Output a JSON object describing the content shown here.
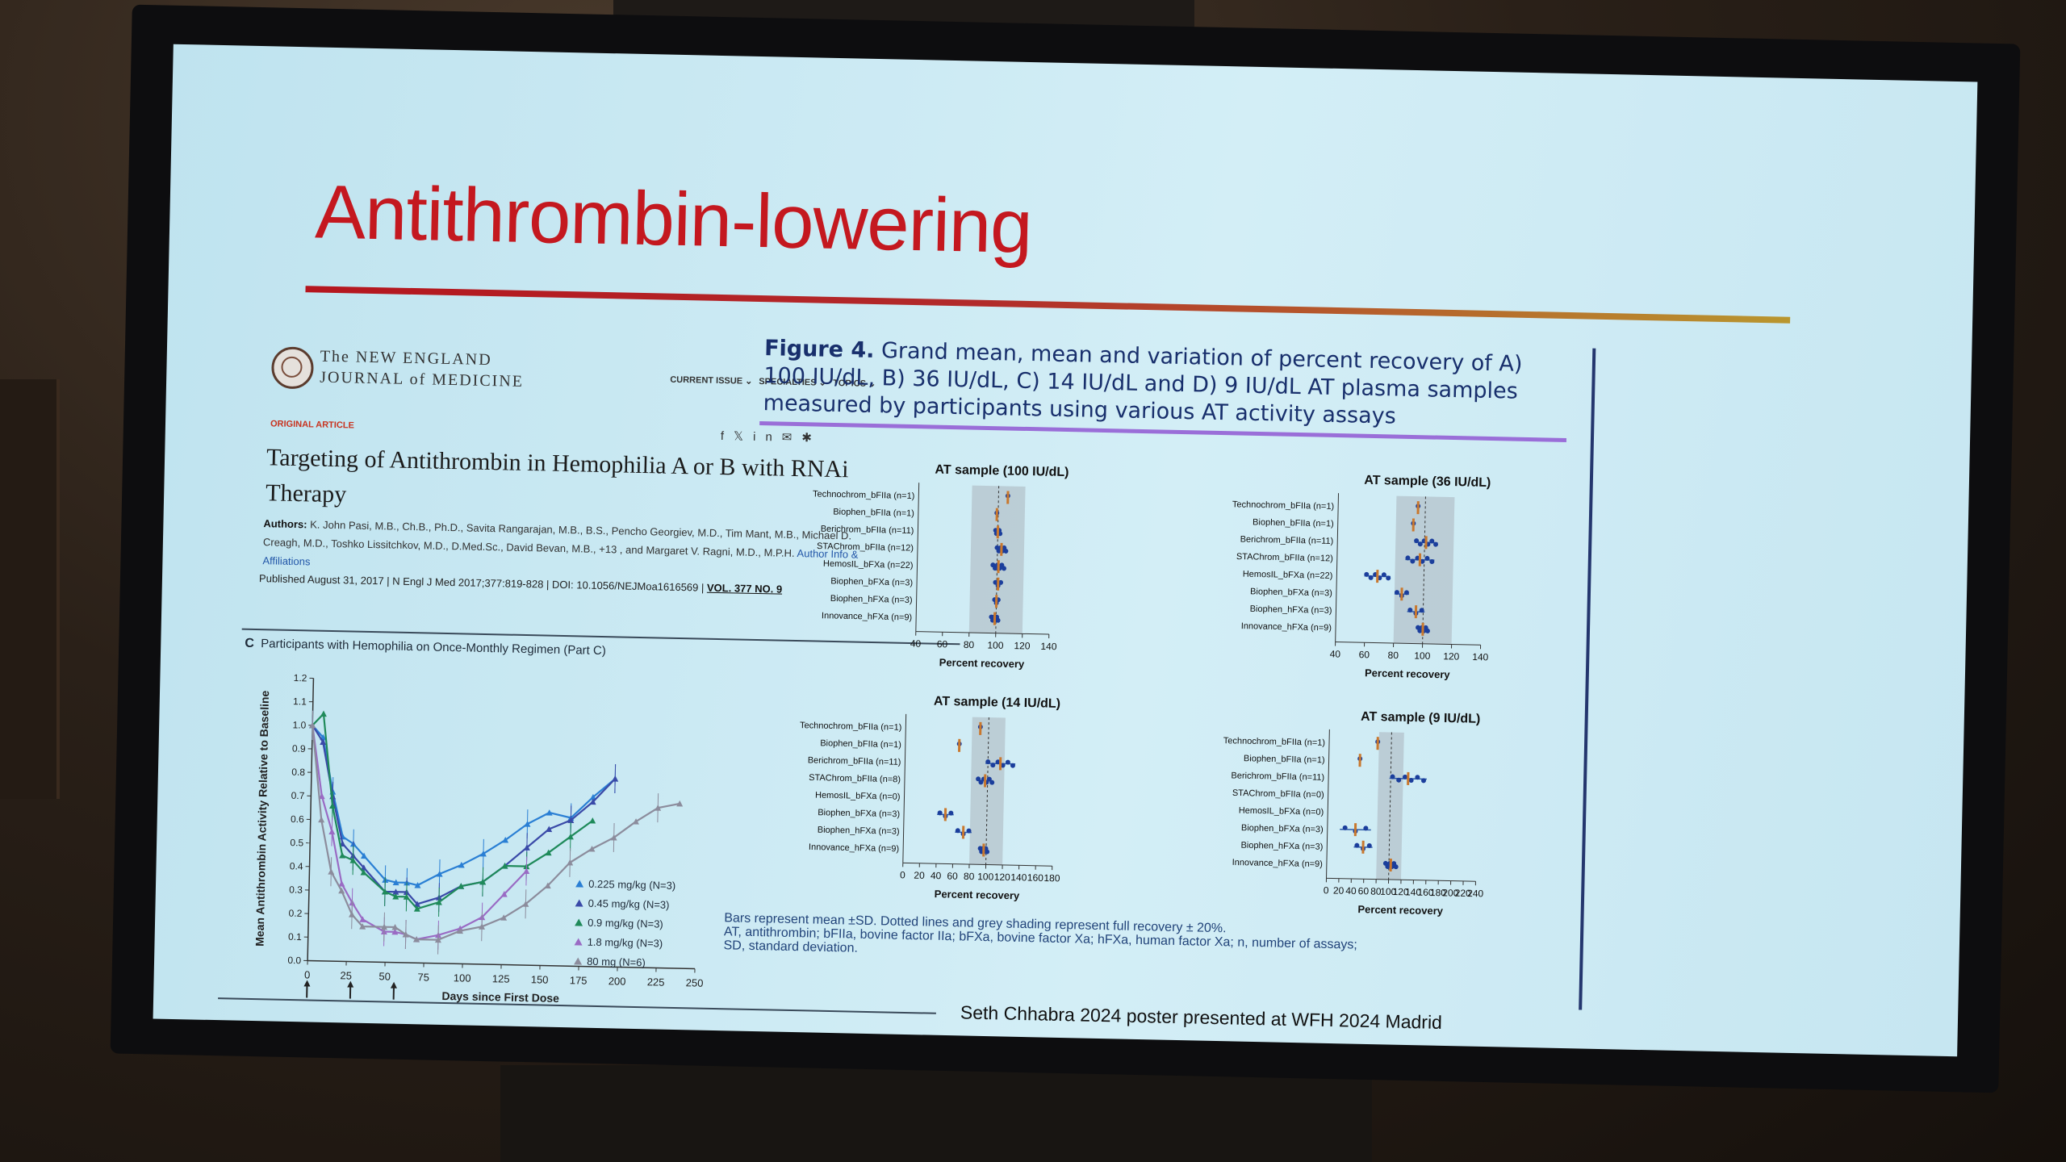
{
  "slide": {
    "title": "Antithrombin-lowering",
    "credit": "Seth Chhabra 2024 poster presented at WFH 2024 Madrid"
  },
  "article": {
    "journal_line1": "The NEW ENGLAND",
    "journal_line2": "JOURNAL of MEDICINE",
    "nav": [
      "CURRENT ISSUE ⌄",
      "SPECIALTIES ⌄",
      "TOPICS ⌄"
    ],
    "section": "ORIGINAL ARTICLE",
    "title": "Targeting of Antithrombin in Hemophilia A or B with RNAi Therapy",
    "authors_label": "Authors:",
    "authors": "K. John Pasi, M.B., Ch.B., Ph.D., Savita Rangarajan, M.B., B.S., Pencho Georgiev, M.D., Tim Mant, M.B., Michael D. Creagh, M.D., Toshko Lissitchkov, M.D., D.Med.Sc., David Bevan, M.B., +13 , and Margaret V. Ragni, M.D., M.P.H.",
    "affiliations": "Author Info & Affiliations",
    "published": "Published August 31, 2017 | N Engl J Med 2017;377:819-828 | DOI: 10.1056/NEJMoa1616569 |",
    "volume": "VOL. 377 NO. 9",
    "social_icons": [
      "facebook-icon",
      "x-icon",
      "linkedin-icon",
      "email-icon",
      "bluesky-icon"
    ]
  },
  "figure_c": {
    "panel": "C",
    "caption": "Participants with Hemophilia on Once-Monthly Regimen (Part C)",
    "ylabel": "Mean Antithrombin Activity Relative to Baseline",
    "xlabel": "Days since First Dose",
    "yticks": [
      "0.0",
      "0.1",
      "0.2",
      "0.3",
      "0.4",
      "0.5",
      "0.6",
      "0.7",
      "0.8",
      "0.9",
      "1.0",
      "1.1",
      "1.2"
    ],
    "xticks": [
      "0",
      "25",
      "50",
      "75",
      "100",
      "125",
      "150",
      "175",
      "200",
      "225",
      "250"
    ],
    "legend": [
      "0.225 mg/kg (N=3)",
      "0.45 mg/kg (N=3)",
      "0.9 mg/kg (N=3)",
      "1.8 mg/kg (N=3)",
      "80 mg (N=6)"
    ]
  },
  "figure4": {
    "label": "Figure 4.",
    "caption": "Grand mean, mean and variation of percent recovery of A) 100 IU/dL, B) 36 IU/dL, C) 14 IU/dL and D) 9 IU/dL AT plasma samples measured by participants using various AT activity assays",
    "xlabel": "Percent recovery",
    "panels": [
      {
        "title": "AT sample (100 IU/dL)",
        "rows": [
          "Technochrom_bFIIa (n=1)",
          "Biophen_bFIIa (n=1)",
          "Berichrom_bFIIa (n=11)",
          "STAChrom_bFIIa (n=12)",
          "HemosIL_bFXa (n=22)",
          "Biophen_bFXa (n=3)",
          "Biophen_hFXa (n=3)",
          "Innovance_hFXa (n=9)"
        ],
        "ticks": [
          "40",
          "60",
          "80",
          "100",
          "120",
          "140"
        ]
      },
      {
        "title": "AT sample (36 IU/dL)",
        "rows": [
          "Technochrom_bFIIa (n=1)",
          "Biophen_bFIIa (n=1)",
          "Berichrom_bFIIa (n=11)",
          "STAChrom_bFIIa (n=12)",
          "HemosIL_bFXa (n=22)",
          "Biophen_bFXa (n=3)",
          "Biophen_hFXa (n=3)",
          "Innovance_hFXa (n=9)"
        ],
        "ticks": [
          "40",
          "60",
          "80",
          "100",
          "120",
          "140"
        ]
      },
      {
        "title": "AT sample (14 IU/dL)",
        "rows": [
          "Technochrom_bFIIa (n=1)",
          "Biophen_bFIIa (n=1)",
          "Berichrom_bFIIa (n=11)",
          "STAChrom_bFIIa (n=8)",
          "HemosIL_bFXa (n=0)",
          "Biophen_bFXa (n=3)",
          "Biophen_hFXa (n=3)",
          "Innovance_hFXa (n=9)"
        ],
        "ticks": [
          "0",
          "20",
          "40",
          "60",
          "80",
          "100",
          "120",
          "140",
          "160",
          "180"
        ]
      },
      {
        "title": "AT sample (9 IU/dL)",
        "rows": [
          "Technochrom_bFIIa (n=1)",
          "Biophen_bFIIa (n=1)",
          "Berichrom_bFIIa (n=11)",
          "STAChrom_bFIIa (n=0)",
          "HemosIL_bFXa (n=0)",
          "Biophen_bFXa (n=3)",
          "Biophen_hFXa (n=3)",
          "Innovance_hFXa (n=9)"
        ],
        "ticks": [
          "0",
          "20",
          "40",
          "60",
          "80",
          "100",
          "120",
          "140",
          "160",
          "180",
          "200",
          "220",
          "240"
        ]
      }
    ],
    "notes": [
      "Bars represent mean ±SD. Dotted lines and grey shading represent full recovery ± 20%.",
      "AT, antithrombin; bFIIa, bovine factor IIa; bFXa, bovine factor Xa; hFXa, human factor Xa; n, number of assays;",
      "SD, standard deviation."
    ]
  },
  "chart_data": [
    {
      "type": "line",
      "title": "Participants with Hemophilia on Once-Monthly Regimen (Part C)",
      "xlabel": "Days since First Dose",
      "ylabel": "Mean Antithrombin Activity Relative to Baseline",
      "xlim": [
        0,
        250
      ],
      "ylim": [
        0,
        1.2
      ],
      "series": [
        {
          "name": "0.225 mg/kg (N=3)",
          "color": "#2a7fd4",
          "x": [
            0,
            7,
            14,
            21,
            28,
            35,
            49,
            56,
            63,
            70,
            84,
            98,
            112,
            126,
            140,
            154,
            168,
            182,
            196
          ],
          "y": [
            1.0,
            0.95,
            0.72,
            0.53,
            0.5,
            0.45,
            0.35,
            0.34,
            0.34,
            0.33,
            0.38,
            0.42,
            0.47,
            0.53,
            0.6,
            0.65,
            0.63,
            0.72,
            0.8
          ]
        },
        {
          "name": "0.45 mg/kg (N=3)",
          "color": "#3a4aa8",
          "x": [
            0,
            7,
            14,
            21,
            28,
            35,
            49,
            56,
            63,
            70,
            84,
            98,
            112,
            126,
            140,
            154,
            168,
            182,
            196
          ],
          "y": [
            1.0,
            0.93,
            0.7,
            0.5,
            0.45,
            0.4,
            0.3,
            0.3,
            0.3,
            0.25,
            0.28,
            0.33,
            0.35,
            0.42,
            0.5,
            0.58,
            0.62,
            0.7,
            0.8
          ]
        },
        {
          "name": "0.9 mg/kg (N=3)",
          "color": "#1f8a5a",
          "x": [
            0,
            7,
            14,
            21,
            28,
            35,
            49,
            56,
            63,
            70,
            84,
            98,
            112,
            126,
            140,
            154,
            168,
            182
          ],
          "y": [
            1.0,
            1.05,
            0.66,
            0.45,
            0.43,
            0.38,
            0.3,
            0.28,
            0.28,
            0.23,
            0.26,
            0.33,
            0.35,
            0.42,
            0.42,
            0.48,
            0.55,
            0.62
          ]
        },
        {
          "name": "1.8 mg/kg (N=3)",
          "color": "#9a6bc4",
          "x": [
            0,
            7,
            14,
            21,
            28,
            35,
            49,
            56,
            63,
            70,
            84,
            98,
            112,
            126,
            140
          ],
          "y": [
            1.0,
            0.7,
            0.55,
            0.33,
            0.25,
            0.18,
            0.13,
            0.13,
            0.12,
            0.1,
            0.12,
            0.15,
            0.2,
            0.3,
            0.4
          ]
        },
        {
          "name": "80 mg (N=6)",
          "color": "#8c8c9c",
          "x": [
            0,
            7,
            14,
            21,
            28,
            35,
            49,
            56,
            63,
            70,
            84,
            98,
            112,
            126,
            140,
            154,
            168,
            182,
            196,
            210,
            224,
            238
          ],
          "y": [
            1.0,
            0.6,
            0.38,
            0.3,
            0.2,
            0.15,
            0.15,
            0.15,
            0.12,
            0.1,
            0.1,
            0.14,
            0.16,
            0.2,
            0.26,
            0.34,
            0.44,
            0.5,
            0.55,
            0.62,
            0.68,
            0.7
          ]
        }
      ]
    },
    {
      "type": "scatter",
      "title": "AT sample (100 IU/dL)",
      "xlabel": "Percent recovery",
      "xlim": [
        40,
        140
      ],
      "categories": [
        "Technochrom_bFIIa (n=1)",
        "Biophen_bFIIa (n=1)",
        "Berichrom_bFIIa (n=11)",
        "STAChrom_bFIIa (n=12)",
        "HemosIL_bFXa (n=22)",
        "Biophen_bFXa (n=3)",
        "Biophen_hFXa (n=3)",
        "Innovance_hFXa (n=9)"
      ],
      "means": [
        107,
        99,
        100,
        103,
        101,
        101,
        100,
        99
      ],
      "sd": [
        0,
        0,
        2,
        4,
        5,
        3,
        2,
        3
      ]
    },
    {
      "type": "scatter",
      "title": "AT sample (36 IU/dL)",
      "xlabel": "Percent recovery",
      "xlim": [
        40,
        140
      ],
      "categories": [
        "Technochrom_bFIIa (n=1)",
        "Biophen_bFIIa (n=1)",
        "Berichrom_bFIIa (n=11)",
        "STAChrom_bFIIa (n=12)",
        "HemosIL_bFXa (n=22)",
        "Biophen_bFXa (n=3)",
        "Biophen_hFXa (n=3)",
        "Innovance_hFXa (n=9)"
      ],
      "means": [
        95,
        92,
        101,
        97,
        68,
        85,
        95,
        100
      ],
      "sd": [
        0,
        0,
        8,
        10,
        9,
        5,
        6,
        4
      ]
    },
    {
      "type": "scatter",
      "title": "AT sample (14 IU/dL)",
      "xlabel": "Percent recovery",
      "xlim": [
        0,
        180
      ],
      "categories": [
        "Technochrom_bFIIa (n=1)",
        "Biophen_bFIIa (n=1)",
        "Berichrom_bFIIa (n=11)",
        "STAChrom_bFIIa (n=8)",
        "HemosIL_bFXa (n=0)",
        "Biophen_bFXa (n=3)",
        "Biophen_hFXa (n=3)",
        "Innovance_hFXa (n=9)"
      ],
      "means": [
        90,
        65,
        115,
        97,
        null,
        50,
        72,
        97
      ],
      "sd": [
        0,
        0,
        18,
        10,
        0,
        10,
        10,
        5
      ]
    },
    {
      "type": "scatter",
      "title": "AT sample (9 IU/dL)",
      "xlabel": "Percent recovery",
      "xlim": [
        0,
        240
      ],
      "categories": [
        "Technochrom_bFIIa (n=1)",
        "Biophen_bFIIa (n=1)",
        "Berichrom_bFIIa (n=11)",
        "STAChrom_bFIIa (n=0)",
        "HemosIL_bFXa (n=0)",
        "Biophen_bFXa (n=3)",
        "Biophen_hFXa (n=3)",
        "Innovance_hFXa (n=9)"
      ],
      "means": [
        78,
        50,
        128,
        null,
        null,
        45,
        58,
        103
      ],
      "sd": [
        0,
        0,
        30,
        0,
        0,
        25,
        15,
        10
      ]
    }
  ]
}
